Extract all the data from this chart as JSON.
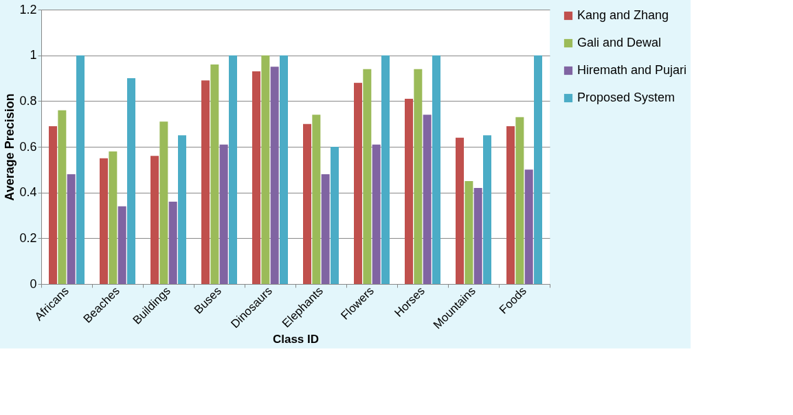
{
  "chart_data": {
    "type": "bar",
    "xlabel": "Class ID",
    "ylabel": "Average   Precision",
    "categories": [
      "Africans",
      "Beaches",
      "Buildings",
      "Buses",
      "Dinosaurs",
      "Elephants",
      "Flowers",
      "Horses",
      "Mountains",
      "Foods"
    ],
    "series": [
      {
        "name": "Kang and Zhang",
        "color": "#c0504d",
        "values": [
          0.69,
          0.55,
          0.56,
          0.89,
          0.93,
          0.7,
          0.88,
          0.81,
          0.64,
          0.69
        ]
      },
      {
        "name": "Gali and Dewal",
        "color": "#9bbb59",
        "values": [
          0.76,
          0.58,
          0.71,
          0.96,
          1.0,
          0.74,
          0.94,
          0.94,
          0.45,
          0.73
        ]
      },
      {
        "name": "Hiremath and Pujari",
        "color": "#8064a2",
        "values": [
          0.48,
          0.34,
          0.36,
          0.61,
          0.95,
          0.48,
          0.61,
          0.74,
          0.42,
          0.5
        ]
      },
      {
        "name": "Proposed System",
        "color": "#4bacc6",
        "values": [
          1.0,
          0.9,
          0.65,
          1.0,
          1.0,
          0.6,
          1.0,
          1.0,
          0.65,
          1.0
        ]
      }
    ],
    "ylim": [
      0,
      1.2
    ],
    "yticks": [
      0,
      0.2,
      0.4,
      0.6,
      0.8,
      1,
      1.2
    ],
    "grid": "y",
    "legend": "right"
  }
}
